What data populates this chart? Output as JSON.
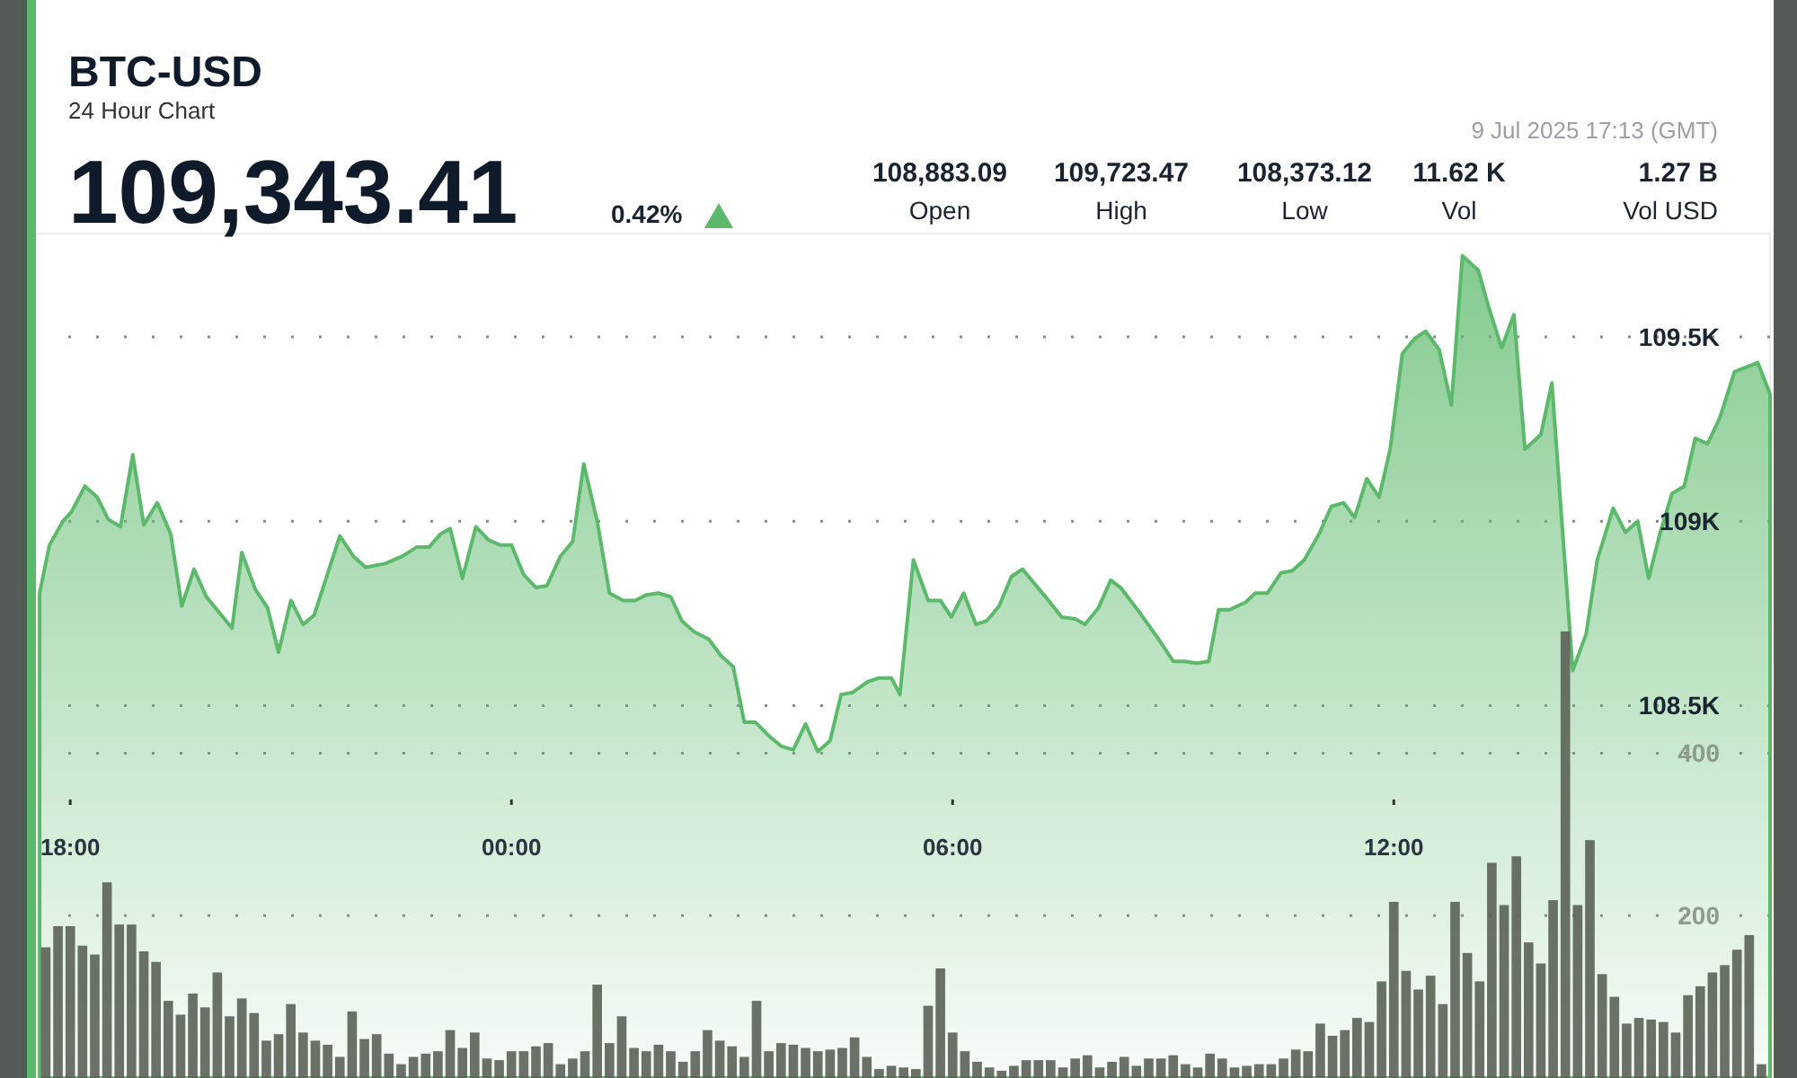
{
  "chart_data": {
    "type": "area",
    "title": "BTC-USD",
    "subtitle": "24 Hour Chart",
    "annotations": [
      "109,343.41",
      "0.42%",
      "108,883.09",
      "Open",
      "109,723.47",
      "High",
      "108,373.12",
      "Low",
      "11.62 K",
      "Vol",
      "1.27 B",
      "Vol USD",
      "9 Jul 2025 17:13 (GMT)"
    ],
    "xlim": [
      "2025-07-08T17:32",
      "2025-07-09T17:07"
    ],
    "xticks": [
      {
        "value": "2025-07-08T18:00",
        "label": "18:00"
      },
      {
        "value": "2025-07-09T00:00",
        "label": "00:00"
      },
      {
        "value": "2025-07-09T06:00",
        "label": "06:00"
      },
      {
        "value": "2025-07-09T12:00",
        "label": "12:00"
      }
    ],
    "ylim": [
      107490,
      109780
    ],
    "yticks": [
      {
        "value": 108500,
        "label": "108.5K"
      },
      {
        "value": 109000,
        "label": "109K"
      },
      {
        "value": 109500,
        "label": "109.5K"
      }
    ],
    "y2lim": [
      0,
      1040
    ],
    "y2ticks": [
      200,
      400
    ],
    "grid": true,
    "series": [
      {
        "color": "#5cb96b",
        "x": [
          "2025-07-08T17:35",
          "2025-07-08T17:43",
          "2025-07-08T17:54",
          "2025-07-08T18:01",
          "2025-07-08T18:12",
          "2025-07-08T18:22",
          "2025-07-08T18:31",
          "2025-07-08T18:41",
          "2025-07-08T18:51",
          "2025-07-08T19:00",
          "2025-07-08T19:11",
          "2025-07-08T19:22",
          "2025-07-08T19:31",
          "2025-07-08T19:41",
          "2025-07-08T19:51",
          "2025-07-08T20:12",
          "2025-07-08T20:20",
          "2025-07-08T20:31",
          "2025-07-08T20:41",
          "2025-07-08T20:50",
          "2025-07-08T21:00",
          "2025-07-08T21:10",
          "2025-07-08T21:19",
          "2025-07-08T21:40",
          "2025-07-08T21:51",
          "2025-07-08T22:01",
          "2025-07-08T22:17",
          "2025-07-08T22:31",
          "2025-07-08T22:43",
          "2025-07-08T22:53",
          "2025-07-08T23:02",
          "2025-07-08T23:10",
          "2025-07-08T23:20",
          "2025-07-08T23:31",
          "2025-07-08T23:41",
          "2025-07-08T23:51",
          "2025-07-09T00:00",
          "2025-07-09T00:10",
          "2025-07-09T00:20",
          "2025-07-09T00:29",
          "2025-07-09T00:40",
          "2025-07-09T00:50",
          "2025-07-09T00:59",
          "2025-07-09T01:10",
          "2025-07-09T01:20",
          "2025-07-09T01:31",
          "2025-07-09T01:41",
          "2025-07-09T01:50",
          "2025-07-09T02:00",
          "2025-07-09T02:10",
          "2025-07-09T02:19",
          "2025-07-09T02:29",
          "2025-07-09T02:41",
          "2025-07-09T02:51",
          "2025-07-09T03:01",
          "2025-07-09T03:10",
          "2025-07-09T03:19",
          "2025-07-09T03:31",
          "2025-07-09T03:40",
          "2025-07-09T03:50",
          "2025-07-09T04:00",
          "2025-07-09T04:10",
          "2025-07-09T04:20",
          "2025-07-09T04:29",
          "2025-07-09T04:38",
          "2025-07-09T04:51",
          "2025-07-09T05:00",
          "2025-07-09T05:10",
          "2025-07-09T05:17",
          "2025-07-09T05:28",
          "2025-07-09T05:40",
          "2025-07-09T05:50",
          "2025-07-09T05:59",
          "2025-07-09T06:09",
          "2025-07-09T06:19",
          "2025-07-09T06:28",
          "2025-07-09T06:38",
          "2025-07-09T06:48",
          "2025-07-09T06:57",
          "2025-07-09T07:07",
          "2025-07-09T07:17",
          "2025-07-09T07:29",
          "2025-07-09T07:40",
          "2025-07-09T07:48",
          "2025-07-09T07:59",
          "2025-07-09T08:09",
          "2025-07-09T08:17",
          "2025-07-09T08:32",
          "2025-07-09T08:47",
          "2025-07-09T09:00",
          "2025-07-09T09:09",
          "2025-07-09T09:19",
          "2025-07-09T09:29",
          "2025-07-09T09:37",
          "2025-07-09T09:46",
          "2025-07-09T09:59",
          "2025-07-09T10:07",
          "2025-07-09T10:17",
          "2025-07-09T10:28",
          "2025-07-09T10:37",
          "2025-07-09T10:47",
          "2025-07-09T10:59",
          "2025-07-09T11:09",
          "2025-07-09T11:19",
          "2025-07-09T11:28",
          "2025-07-09T11:38",
          "2025-07-09T11:48",
          "2025-07-09T11:57",
          "2025-07-09T12:07",
          "2025-07-09T12:17",
          "2025-07-09T12:26",
          "2025-07-09T12:37",
          "2025-07-09T12:47",
          "2025-07-09T12:56",
          "2025-07-09T13:09",
          "2025-07-09T13:17",
          "2025-07-09T13:28",
          "2025-07-09T13:38",
          "2025-07-09T13:47",
          "2025-07-09T14:00",
          "2025-07-09T14:09",
          "2025-07-09T14:16",
          "2025-07-09T14:26",
          "2025-07-09T14:37",
          "2025-07-09T14:46",
          "2025-07-09T14:59",
          "2025-07-09T15:09",
          "2025-07-09T15:19",
          "2025-07-09T15:28",
          "2025-07-09T15:37",
          "2025-07-09T15:47",
          "2025-07-09T15:57",
          "2025-07-09T16:06",
          "2025-07-09T16:16",
          "2025-07-09T16:26",
          "2025-07-09T16:38",
          "2025-07-09T16:57",
          "2025-07-09T17:07"
        ],
        "values": [
          108805,
          108935,
          109000,
          109025,
          109095,
          109065,
          109005,
          108985,
          109180,
          108990,
          109050,
          108965,
          108770,
          108870,
          108795,
          108710,
          108915,
          108815,
          108765,
          108645,
          108785,
          108720,
          108745,
          108960,
          108905,
          108875,
          108885,
          108905,
          108930,
          108930,
          108965,
          108980,
          108845,
          108985,
          108950,
          108935,
          108935,
          108855,
          108820,
          108825,
          108905,
          108945,
          109155,
          109000,
          108805,
          108785,
          108785,
          108800,
          108805,
          108795,
          108730,
          108700,
          108680,
          108635,
          108605,
          108455,
          108455,
          108415,
          108390,
          108380,
          108450,
          108375,
          108405,
          108530,
          108535,
          108565,
          108575,
          108575,
          108530,
          108895,
          108785,
          108785,
          108740,
          108805,
          108720,
          108730,
          108770,
          108850,
          108870,
          108830,
          108790,
          108740,
          108735,
          108720,
          108765,
          108840,
          108820,
          108755,
          108685,
          108620,
          108620,
          108615,
          108620,
          108760,
          108760,
          108780,
          108805,
          108805,
          108860,
          108865,
          108895,
          108965,
          109040,
          109050,
          109010,
          109115,
          109065,
          109195,
          109455,
          109495,
          109515,
          109465,
          109315,
          109720,
          109680,
          109585,
          109470,
          109560,
          109195,
          109235,
          109375,
          109050,
          108595,
          108695,
          108895,
          109035,
          108970,
          109000,
          108845,
          108965,
          109075,
          109095,
          109225,
          109210,
          109280,
          109405,
          109430,
          109345
        ]
      },
      {
        "type": "bar",
        "axis": "y2",
        "color": "#5b6257",
        "x": [
          "2025-07-08T17:40",
          "2025-07-08T17:50",
          "2025-07-08T18:00",
          "2025-07-08T18:10",
          "2025-07-08T18:20",
          "2025-07-08T18:30",
          "2025-07-08T18:40",
          "2025-07-08T18:50",
          "2025-07-08T19:00",
          "2025-07-08T19:10",
          "2025-07-08T19:20",
          "2025-07-08T19:30",
          "2025-07-08T19:40",
          "2025-07-08T19:50",
          "2025-07-08T20:00",
          "2025-07-08T20:10",
          "2025-07-08T20:20",
          "2025-07-08T20:30",
          "2025-07-08T20:40",
          "2025-07-08T20:50",
          "2025-07-08T21:00",
          "2025-07-08T21:10",
          "2025-07-08T21:20",
          "2025-07-08T21:30",
          "2025-07-08T21:40",
          "2025-07-08T21:50",
          "2025-07-08T22:00",
          "2025-07-08T22:10",
          "2025-07-08T22:20",
          "2025-07-08T22:30",
          "2025-07-08T22:40",
          "2025-07-08T22:50",
          "2025-07-08T23:00",
          "2025-07-08T23:10",
          "2025-07-08T23:20",
          "2025-07-08T23:30",
          "2025-07-08T23:40",
          "2025-07-08T23:50",
          "2025-07-09T00:00",
          "2025-07-09T00:10",
          "2025-07-09T00:20",
          "2025-07-09T00:30",
          "2025-07-09T00:40",
          "2025-07-09T00:50",
          "2025-07-09T01:00",
          "2025-07-09T01:10",
          "2025-07-09T01:20",
          "2025-07-09T01:30",
          "2025-07-09T01:40",
          "2025-07-09T01:50",
          "2025-07-09T02:00",
          "2025-07-09T02:10",
          "2025-07-09T02:20",
          "2025-07-09T02:30",
          "2025-07-09T02:40",
          "2025-07-09T02:50",
          "2025-07-09T03:00",
          "2025-07-09T03:10",
          "2025-07-09T03:20",
          "2025-07-09T03:30",
          "2025-07-09T03:40",
          "2025-07-09T03:50",
          "2025-07-09T04:00",
          "2025-07-09T04:10",
          "2025-07-09T04:20",
          "2025-07-09T04:30",
          "2025-07-09T04:40",
          "2025-07-09T04:50",
          "2025-07-09T05:00",
          "2025-07-09T05:10",
          "2025-07-09T05:20",
          "2025-07-09T05:30",
          "2025-07-09T05:40",
          "2025-07-09T05:50",
          "2025-07-09T06:00",
          "2025-07-09T06:10",
          "2025-07-09T06:20",
          "2025-07-09T06:30",
          "2025-07-09T06:40",
          "2025-07-09T06:50",
          "2025-07-09T07:00",
          "2025-07-09T07:10",
          "2025-07-09T07:20",
          "2025-07-09T07:30",
          "2025-07-09T07:40",
          "2025-07-09T07:50",
          "2025-07-09T08:00",
          "2025-07-09T08:10",
          "2025-07-09T08:20",
          "2025-07-09T08:30",
          "2025-07-09T08:40",
          "2025-07-09T08:50",
          "2025-07-09T09:00",
          "2025-07-09T09:10",
          "2025-07-09T09:20",
          "2025-07-09T09:30",
          "2025-07-09T09:40",
          "2025-07-09T09:50",
          "2025-07-09T10:00",
          "2025-07-09T10:10",
          "2025-07-09T10:20",
          "2025-07-09T10:30",
          "2025-07-09T10:40",
          "2025-07-09T10:50",
          "2025-07-09T11:00",
          "2025-07-09T11:10",
          "2025-07-09T11:20",
          "2025-07-09T11:30",
          "2025-07-09T11:40",
          "2025-07-09T11:50",
          "2025-07-09T12:00",
          "2025-07-09T12:10",
          "2025-07-09T12:20",
          "2025-07-09T12:30",
          "2025-07-09T12:40",
          "2025-07-09T12:50",
          "2025-07-09T13:00",
          "2025-07-09T13:10",
          "2025-07-09T13:20",
          "2025-07-09T13:30",
          "2025-07-09T13:40",
          "2025-07-09T13:50",
          "2025-07-09T14:00",
          "2025-07-09T14:10",
          "2025-07-09T14:20",
          "2025-07-09T14:30",
          "2025-07-09T14:40",
          "2025-07-09T14:50",
          "2025-07-09T15:00",
          "2025-07-09T15:10",
          "2025-07-09T15:20",
          "2025-07-09T15:30",
          "2025-07-09T15:40",
          "2025-07-09T15:50",
          "2025-07-09T16:00",
          "2025-07-09T16:10",
          "2025-07-09T16:20",
          "2025-07-09T16:30",
          "2025-07-09T16:40",
          "2025-07-09T16:50",
          "2025-07-09T17:00"
        ],
        "values": [
          161,
          187,
          187,
          163,
          152,
          241,
          189,
          189,
          156,
          143,
          95,
          78,
          104,
          87,
          130,
          76,
          98,
          80,
          46,
          54,
          91,
          56,
          46,
          41,
          26,
          82,
          48,
          54,
          30,
          17,
          26,
          30,
          33,
          59,
          37,
          56,
          24,
          22,
          33,
          33,
          39,
          43,
          17,
          24,
          33,
          115,
          43,
          76,
          37,
          33,
          41,
          33,
          20,
          33,
          59,
          46,
          39,
          26,
          95,
          33,
          43,
          41,
          37,
          33,
          35,
          37,
          50,
          26,
          11,
          15,
          13,
          11,
          89,
          135,
          56,
          33,
          20,
          13,
          9,
          15,
          22,
          22,
          22,
          13,
          24,
          28,
          13,
          20,
          26,
          15,
          24,
          24,
          28,
          17,
          13,
          30,
          24,
          13,
          15,
          17,
          17,
          24,
          35,
          33,
          67,
          52,
          59,
          74,
          69,
          119,
          217,
          132,
          109,
          126,
          91,
          217,
          154,
          119,
          265,
          213,
          273,
          167,
          141,
          219,
          550,
          213,
          293,
          128,
          100,
          67,
          74,
          72,
          69,
          56,
          102,
          113,
          130,
          139,
          158,
          176,
          17
        ]
      }
    ]
  }
}
